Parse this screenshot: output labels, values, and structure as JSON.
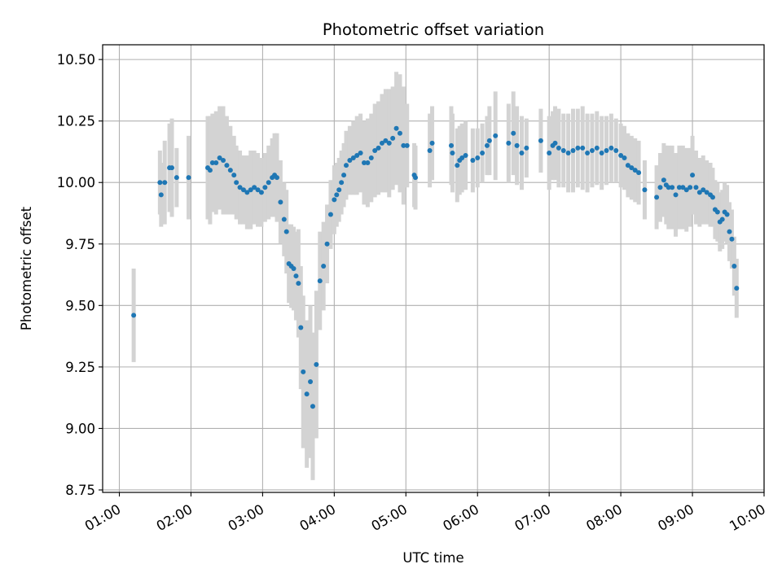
{
  "chart_data": {
    "type": "scatter",
    "title": "Photometric offset variation",
    "xlabel": "UTC time",
    "ylabel": "Photometric offset",
    "xlim": [
      "00:46",
      "10:00"
    ],
    "ylim": [
      8.74,
      10.56
    ],
    "grid": true,
    "x_ticks": [
      "01:00",
      "02:00",
      "03:00",
      "04:00",
      "05:00",
      "06:00",
      "07:00",
      "08:00",
      "09:00",
      "10:00"
    ],
    "y_ticks": [
      "8.75",
      "9.00",
      "9.25",
      "9.50",
      "9.75",
      "10.00",
      "10.25",
      "10.50"
    ],
    "point_color": "#1f77b4",
    "errorbar_color": "#d3d3d3",
    "series": [
      {
        "x": [
          "01:12",
          "01:34",
          "01:35",
          "01:38",
          "01:42",
          "01:44",
          "01:48",
          "01:58",
          "02:14",
          "02:16",
          "02:18",
          "02:21",
          "02:24",
          "02:27",
          "02:30",
          "02:33",
          "02:36",
          "02:38",
          "02:41",
          "02:44",
          "02:47",
          "02:50",
          "02:53",
          "02:56",
          "02:59",
          "03:02",
          "03:05",
          "03:08",
          "03:10",
          "03:12",
          "03:15",
          "03:18",
          "03:20",
          "03:22",
          "03:24",
          "03:26",
          "03:28",
          "03:30",
          "03:32",
          "03:34",
          "03:37",
          "03:40",
          "03:42",
          "03:45",
          "03:48",
          "03:51",
          "03:54",
          "03:57",
          "04:00",
          "04:02",
          "04:04",
          "04:06",
          "04:08",
          "04:10",
          "04:13",
          "04:16",
          "04:19",
          "04:22",
          "04:25",
          "04:28",
          "04:31",
          "04:34",
          "04:37",
          "04:40",
          "04:43",
          "04:46",
          "04:49",
          "04:52",
          "04:55",
          "04:58",
          "05:01",
          "05:07",
          "05:08",
          "05:20",
          "05:22",
          "05:38",
          "05:39",
          "05:43",
          "05:45",
          "05:47",
          "05:50",
          "05:56",
          "06:00",
          "06:04",
          "06:08",
          "06:10",
          "06:15",
          "06:26",
          "06:30",
          "06:33",
          "06:37",
          "06:41",
          "06:53",
          "07:00",
          "07:03",
          "07:05",
          "07:08",
          "07:12",
          "07:16",
          "07:20",
          "07:24",
          "07:28",
          "07:32",
          "07:36",
          "07:40",
          "07:44",
          "07:48",
          "07:52",
          "07:56",
          "08:00",
          "08:03",
          "08:06",
          "08:09",
          "08:12",
          "08:15",
          "08:20",
          "08:30",
          "08:33",
          "08:36",
          "08:38",
          "08:40",
          "08:43",
          "08:46",
          "08:49",
          "08:52",
          "08:55",
          "08:58",
          "09:00",
          "09:03",
          "09:06",
          "09:09",
          "09:12",
          "09:15",
          "09:17",
          "09:19",
          "09:21",
          "09:23",
          "09:25",
          "09:27",
          "09:29",
          "09:31",
          "09:33",
          "09:35",
          "09:37"
        ],
        "y": [
          9.46,
          10.0,
          9.95,
          10.0,
          10.06,
          10.06,
          10.02,
          10.02,
          10.06,
          10.05,
          10.08,
          10.08,
          10.1,
          10.09,
          10.07,
          10.05,
          10.03,
          10.0,
          9.98,
          9.97,
          9.96,
          9.97,
          9.98,
          9.97,
          9.96,
          9.98,
          10.0,
          10.02,
          10.03,
          10.02,
          9.92,
          9.85,
          9.8,
          9.67,
          9.66,
          9.65,
          9.62,
          9.59,
          9.41,
          9.23,
          9.14,
          9.19,
          9.09,
          9.26,
          9.6,
          9.66,
          9.75,
          9.87,
          9.93,
          9.95,
          9.97,
          10.0,
          10.03,
          10.07,
          10.09,
          10.1,
          10.11,
          10.12,
          10.08,
          10.08,
          10.1,
          10.13,
          10.14,
          10.16,
          10.17,
          10.16,
          10.18,
          10.22,
          10.2,
          10.15,
          10.15,
          10.03,
          10.02,
          10.13,
          10.16,
          10.15,
          10.12,
          10.07,
          10.09,
          10.1,
          10.11,
          10.09,
          10.1,
          10.12,
          10.15,
          10.17,
          10.19,
          10.16,
          10.2,
          10.15,
          10.12,
          10.14,
          10.17,
          10.12,
          10.15,
          10.16,
          10.14,
          10.13,
          10.12,
          10.13,
          10.14,
          10.14,
          10.12,
          10.13,
          10.14,
          10.12,
          10.13,
          10.14,
          10.13,
          10.11,
          10.1,
          10.07,
          10.06,
          10.05,
          10.04,
          9.97,
          9.94,
          9.98,
          10.01,
          9.99,
          9.98,
          9.98,
          9.95,
          9.98,
          9.98,
          9.97,
          9.98,
          10.03,
          9.98,
          9.96,
          9.97,
          9.96,
          9.95,
          9.94,
          9.89,
          9.88,
          9.84,
          9.85,
          9.88,
          9.87,
          9.8,
          9.77,
          9.66,
          9.57
        ],
        "err": [
          0.19,
          0.13,
          0.13,
          0.17,
          0.18,
          0.2,
          0.12,
          0.17,
          0.21,
          0.22,
          0.2,
          0.21,
          0.21,
          0.22,
          0.2,
          0.18,
          0.16,
          0.15,
          0.15,
          0.14,
          0.15,
          0.16,
          0.15,
          0.15,
          0.14,
          0.14,
          0.15,
          0.16,
          0.17,
          0.18,
          0.17,
          0.15,
          0.17,
          0.16,
          0.17,
          0.17,
          0.18,
          0.22,
          0.25,
          0.31,
          0.3,
          0.31,
          0.3,
          0.3,
          0.2,
          0.18,
          0.16,
          0.14,
          0.14,
          0.13,
          0.13,
          0.13,
          0.13,
          0.14,
          0.14,
          0.15,
          0.16,
          0.16,
          0.17,
          0.18,
          0.18,
          0.19,
          0.19,
          0.2,
          0.21,
          0.22,
          0.21,
          0.23,
          0.24,
          0.24,
          0.17,
          0.13,
          0.13,
          0.15,
          0.15,
          0.16,
          0.16,
          0.15,
          0.14,
          0.14,
          0.14,
          0.13,
          0.12,
          0.12,
          0.12,
          0.14,
          0.18,
          0.16,
          0.17,
          0.16,
          0.15,
          0.12,
          0.13,
          0.15,
          0.14,
          0.15,
          0.16,
          0.15,
          0.16,
          0.17,
          0.16,
          0.17,
          0.16,
          0.15,
          0.15,
          0.15,
          0.14,
          0.14,
          0.13,
          0.13,
          0.13,
          0.13,
          0.13,
          0.13,
          0.13,
          0.12,
          0.13,
          0.14,
          0.15,
          0.16,
          0.17,
          0.17,
          0.17,
          0.17,
          0.17,
          0.17,
          0.16,
          0.16,
          0.15,
          0.14,
          0.14,
          0.13,
          0.13,
          0.12,
          0.12,
          0.12,
          0.12,
          0.12,
          0.12,
          0.12,
          0.12,
          0.12,
          0.12,
          0.12
        ]
      }
    ]
  }
}
